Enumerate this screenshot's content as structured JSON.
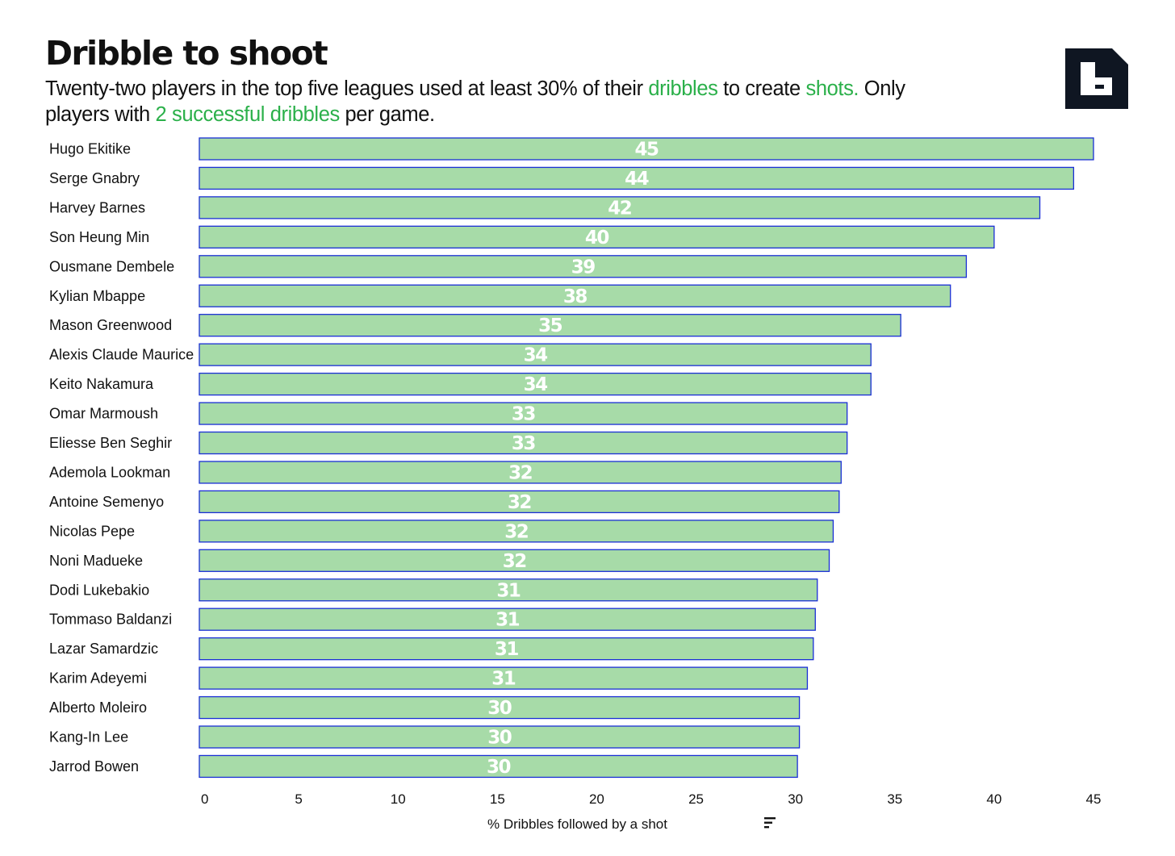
{
  "header": {
    "title": "Dribble to shoot",
    "subtitle": {
      "part1": "Twenty-two players in the top five leagues used at least 30% of their ",
      "hl1": "dribbles",
      "part2": " to create ",
      "hl2": "shots.",
      "part3": " Only players with ",
      "hl3": "2 successful dribbles",
      "part4": " per game."
    }
  },
  "colors": {
    "bar_fill": "#a7dba8",
    "bar_stroke": "#1a2fd6",
    "highlight": "#2bb04a",
    "logo": "#0f1622"
  },
  "logo": {
    "icon": "brand-b-logo-icon"
  },
  "chart_data": {
    "type": "bar",
    "orientation": "horizontal",
    "title": "Dribble to shoot",
    "xlabel": "% Dribbles followed by a shot",
    "ylabel": "",
    "xlim": [
      0,
      45
    ],
    "xticks": [
      0,
      5,
      10,
      15,
      20,
      25,
      30,
      35,
      40,
      45
    ],
    "grid": false,
    "categories": [
      "Hugo Ekitike",
      "Serge Gnabry",
      "Harvey Barnes",
      "Son Heung Min",
      "Ousmane Dembele",
      "Kylian Mbappe",
      "Mason Greenwood",
      "Alexis Claude Maurice",
      "Keito Nakamura",
      "Omar Marmoush",
      "Eliesse Ben Seghir",
      "Ademola Lookman",
      "Antoine Semenyo",
      "Nicolas Pepe",
      "Noni Madueke",
      "Dodi Lukebakio",
      "Tommaso Baldanzi",
      "Lazar Samardzic",
      "Karim Adeyemi",
      "Alberto Moleiro",
      "Kang-In Lee",
      "Jarrod Bowen"
    ],
    "values": [
      45.0,
      44.0,
      42.3,
      40.0,
      38.6,
      37.8,
      35.3,
      33.8,
      33.8,
      32.6,
      32.6,
      32.3,
      32.2,
      31.9,
      31.7,
      31.1,
      31.0,
      30.9,
      30.6,
      30.2,
      30.2,
      30.1
    ],
    "data_labels": [
      "45",
      "44",
      "42",
      "40",
      "39",
      "38",
      "35",
      "34",
      "34",
      "33",
      "33",
      "32",
      "32",
      "32",
      "32",
      "31",
      "31",
      "31",
      "31",
      "30",
      "30",
      "30"
    ],
    "sort_icon": "sort-descending-icon"
  }
}
